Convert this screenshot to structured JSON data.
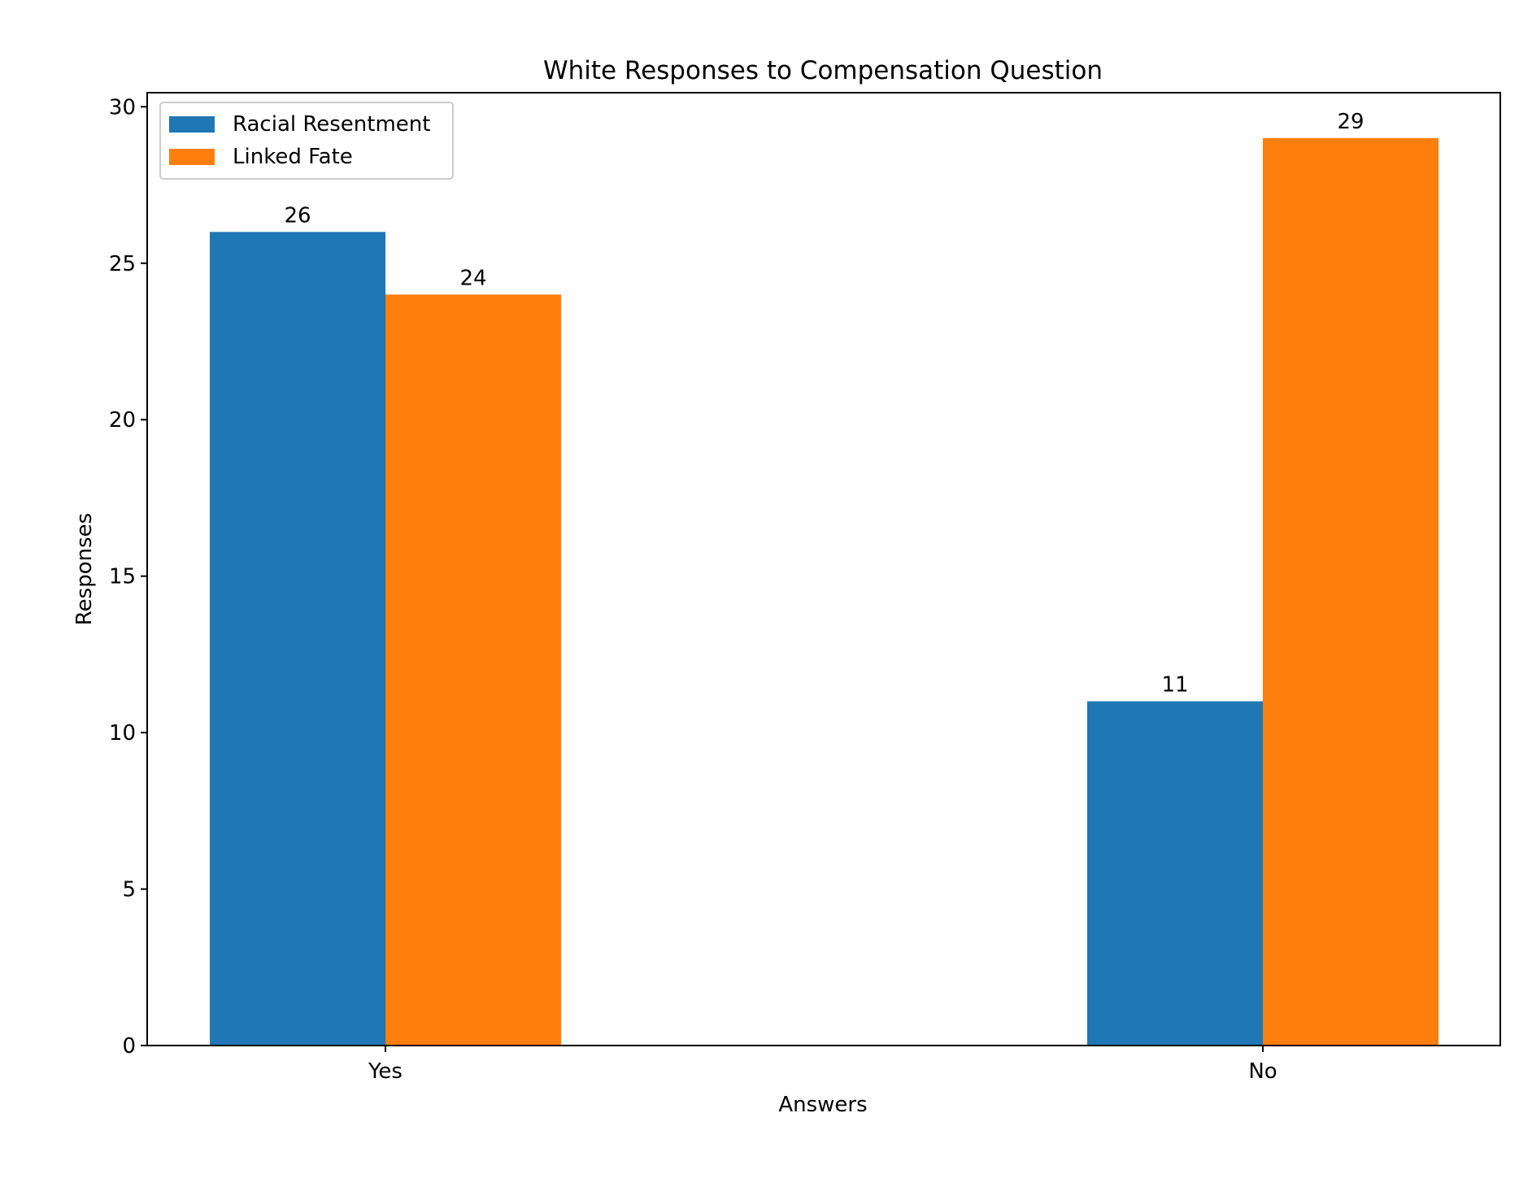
{
  "chart_data": {
    "type": "bar",
    "title": "White Responses to Compensation Question",
    "xlabel": "Answers",
    "ylabel": "Responses",
    "categories": [
      "Yes",
      "No"
    ],
    "series": [
      {
        "name": "Racial Resentment",
        "values": [
          26,
          11
        ],
        "color": "#1f77b4"
      },
      {
        "name": "Linked Fate",
        "values": [
          24,
          29
        ],
        "color": "#ff7f0e"
      }
    ],
    "ylim": [
      0,
      30.45
    ],
    "yticks": [
      0,
      5,
      10,
      15,
      20,
      25,
      30
    ],
    "grid": false,
    "legend_position": "top-left",
    "data_labels": true
  }
}
